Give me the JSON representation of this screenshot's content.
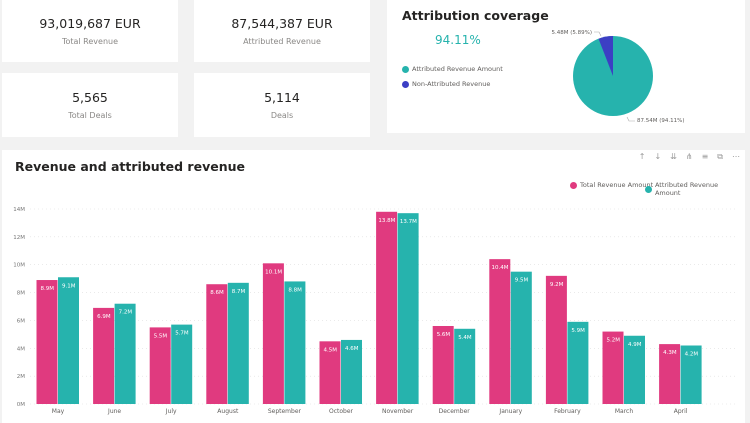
{
  "kpis": [
    {
      "value": "93,019,687 EUR",
      "label": "Total Revenue"
    },
    {
      "value": "87,544,387 EUR",
      "label": "Attributed Revenue"
    },
    {
      "value": "5,565",
      "label": "Total Deals"
    },
    {
      "value": "5,114",
      "label": "Deals"
    }
  ],
  "coverage": {
    "title": "Attribution coverage",
    "value": "94.11%",
    "legend": [
      "Attributed Revenue Amount",
      "Non-Attributed Revenue"
    ],
    "slice_labels": [
      "87.54M (94.11%)",
      "5.48M (5.89%)"
    ]
  },
  "colors": {
    "total": "#e03a7f",
    "attributed": "#26b3ad",
    "non_attributed": "#3c3fc4"
  },
  "toolbar_icons": [
    "arrow-up-icon",
    "arrow-down-icon",
    "double-arrow-down-icon",
    "expand-hierarchy-icon",
    "filter-icon",
    "focus-mode-icon",
    "more-options-icon"
  ],
  "chart_data": [
    {
      "type": "pie",
      "values": [
        87.54,
        5.48
      ],
      "labels": [
        "Attributed Revenue Amount",
        "Non-Attributed Revenue"
      ],
      "percent": [
        94.11,
        5.89
      ]
    },
    {
      "type": "bar",
      "title": "Revenue and attributed revenue",
      "legend_position": "top-right",
      "categories": [
        "May",
        "June",
        "July",
        "August",
        "September",
        "October",
        "November",
        "December",
        "January",
        "February",
        "March",
        "April"
      ],
      "series": [
        {
          "name": "Total Revenue Amount",
          "values": [
            8.9,
            6.9,
            5.5,
            8.6,
            10.1,
            4.5,
            13.8,
            5.6,
            10.4,
            9.2,
            5.2,
            4.3
          ],
          "labels": [
            "8.9M",
            "6.9M",
            "5.5M",
            "8.6M",
            "10.1M",
            "4.5M",
            "13.8M",
            "5.6M",
            "10.4M",
            "9.2M",
            "5.2M",
            "4.3M"
          ]
        },
        {
          "name": "Attributed Revenue Amount",
          "values": [
            9.1,
            7.2,
            5.7,
            8.7,
            8.8,
            4.6,
            13.7,
            5.4,
            9.5,
            5.9,
            4.9,
            4.2
          ],
          "labels": [
            "9.1M",
            "7.2M",
            "5.7M",
            "8.7M",
            "8.8M",
            "4.6M",
            "13.7M",
            "5.4M",
            "9.5M",
            "5.9M",
            "4.9M",
            "4.2M"
          ]
        }
      ],
      "yticks": [
        "0M",
        "2M",
        "4M",
        "6M",
        "8M",
        "10M",
        "12M",
        "14M"
      ],
      "ylim": [
        0,
        14
      ],
      "grid": true
    }
  ]
}
